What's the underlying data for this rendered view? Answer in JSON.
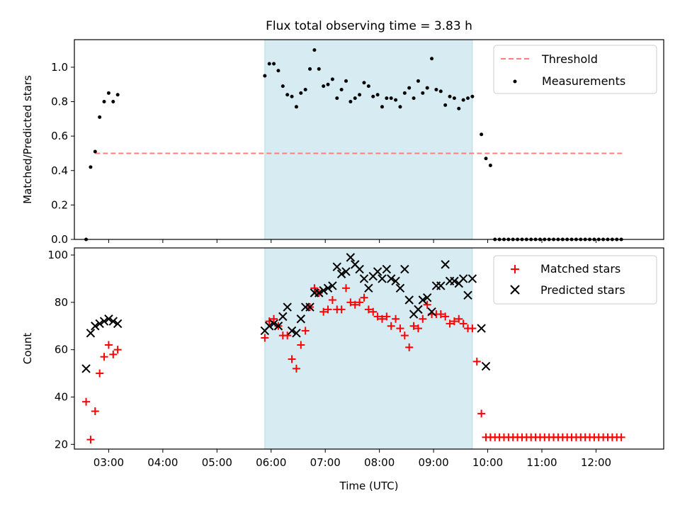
{
  "chart_data": [
    {
      "type": "scatter",
      "title": "Flux total observing time = 3.83 h",
      "xlabel": "",
      "ylabel": "Matched/Predicted stars",
      "xlim": [
        "02:22",
        "13:15"
      ],
      "ylim": [
        0,
        1.16
      ],
      "yticks": [
        "0.0",
        "0.2",
        "0.4",
        "0.6",
        "0.8",
        "1.0"
      ],
      "grid": false,
      "legend": "top-right",
      "shaded_interval": [
        "05:53",
        "09:43"
      ],
      "threshold": {
        "name": "Threshold",
        "value": 0.5,
        "x_start": "02:45",
        "x_end": "12:30",
        "color": "#ff7f7f"
      },
      "series": [
        {
          "name": "Measurements",
          "color": "#000000",
          "x": [
            "02:35",
            "02:40",
            "02:45",
            "02:50",
            "02:55",
            "03:00",
            "03:05",
            "03:10",
            "05:53",
            "05:58",
            "06:03",
            "06:08",
            "06:13",
            "06:18",
            "06:23",
            "06:28",
            "06:33",
            "06:38",
            "06:43",
            "06:48",
            "06:53",
            "06:58",
            "07:03",
            "07:08",
            "07:13",
            "07:18",
            "07:23",
            "07:28",
            "07:33",
            "07:38",
            "07:43",
            "07:48",
            "07:53",
            "07:58",
            "08:03",
            "08:08",
            "08:13",
            "08:18",
            "08:23",
            "08:28",
            "08:33",
            "08:38",
            "08:43",
            "08:48",
            "08:53",
            "08:58",
            "09:03",
            "09:08",
            "09:13",
            "09:18",
            "09:23",
            "09:28",
            "09:33",
            "09:38",
            "09:43",
            "09:53",
            "09:58",
            "10:03",
            "10:08",
            "10:13",
            "10:18",
            "10:23",
            "10:28",
            "10:33",
            "10:38",
            "10:43",
            "10:48",
            "10:53",
            "10:58",
            "11:03",
            "11:08",
            "11:13",
            "11:18",
            "11:23",
            "11:28",
            "11:33",
            "11:38",
            "11:43",
            "11:48",
            "11:53",
            "11:58",
            "12:03",
            "12:08",
            "12:13",
            "12:18",
            "12:23",
            "12:28"
          ],
          "values": [
            0.0,
            0.42,
            0.51,
            0.71,
            0.8,
            0.85,
            0.8,
            0.84,
            0.95,
            1.02,
            1.02,
            0.98,
            0.89,
            0.84,
            0.83,
            0.77,
            0.85,
            0.87,
            0.99,
            1.1,
            0.99,
            0.89,
            0.9,
            0.93,
            0.82,
            0.87,
            0.92,
            0.8,
            0.82,
            0.84,
            0.91,
            0.89,
            0.83,
            0.84,
            0.77,
            0.82,
            0.82,
            0.81,
            0.77,
            0.85,
            0.88,
            0.82,
            0.92,
            0.85,
            0.88,
            1.05,
            0.87,
            0.86,
            0.78,
            0.83,
            0.82,
            0.76,
            0.81,
            0.82,
            0.83,
            0.61,
            0.47,
            0.43,
            0.0,
            0.0,
            0.0,
            0.0,
            0.0,
            0.0,
            0.0,
            0.0,
            0.0,
            0.0,
            0.0,
            0.0,
            0.0,
            0.0,
            0.0,
            0.0,
            0.0,
            0.0,
            0.0,
            0.0,
            0.0,
            0.0,
            0.0,
            0.0,
            0.0,
            0.0,
            0.0,
            0.0,
            0.0
          ]
        }
      ]
    },
    {
      "type": "scatter",
      "title": "",
      "xlabel": "Time (UTC)",
      "ylabel": "Count",
      "xlim": [
        "02:22",
        "13:15"
      ],
      "ylim": [
        18,
        103
      ],
      "yticks": [
        "20",
        "40",
        "60",
        "80",
        "100"
      ],
      "xticks": [
        "03:00",
        "04:00",
        "05:00",
        "06:00",
        "07:00",
        "08:00",
        "09:00",
        "10:00",
        "11:00",
        "12:00"
      ],
      "grid": false,
      "legend": "top-right",
      "shaded_interval": [
        "05:53",
        "09:43"
      ],
      "series": [
        {
          "name": "Matched stars",
          "marker": "plus",
          "color": "#ff0000",
          "x": [
            "02:35",
            "02:40",
            "02:45",
            "02:50",
            "02:55",
            "03:00",
            "03:05",
            "03:10",
            "05:53",
            "05:58",
            "06:03",
            "06:08",
            "06:13",
            "06:18",
            "06:23",
            "06:28",
            "06:33",
            "06:38",
            "06:43",
            "06:48",
            "06:53",
            "06:58",
            "07:03",
            "07:08",
            "07:13",
            "07:18",
            "07:23",
            "07:28",
            "07:33",
            "07:38",
            "07:43",
            "07:48",
            "07:53",
            "07:58",
            "08:03",
            "08:08",
            "08:13",
            "08:18",
            "08:23",
            "08:28",
            "08:33",
            "08:38",
            "08:43",
            "08:48",
            "08:53",
            "08:58",
            "09:03",
            "09:08",
            "09:13",
            "09:18",
            "09:23",
            "09:28",
            "09:33",
            "09:38",
            "09:43",
            "09:48",
            "09:53",
            "09:58",
            "10:03",
            "10:08",
            "10:13",
            "10:18",
            "10:23",
            "10:28",
            "10:33",
            "10:38",
            "10:43",
            "10:48",
            "10:53",
            "10:58",
            "11:03",
            "11:08",
            "11:13",
            "11:18",
            "11:23",
            "11:28",
            "11:33",
            "11:38",
            "11:43",
            "11:48",
            "11:53",
            "11:58",
            "12:03",
            "12:08",
            "12:13",
            "12:18",
            "12:23",
            "12:28"
          ],
          "values": [
            38,
            22,
            34,
            50,
            57,
            62,
            58,
            60,
            65,
            72,
            73,
            70,
            66,
            66,
            56,
            52,
            62,
            68,
            78,
            86,
            84,
            76,
            77,
            81,
            77,
            77,
            86,
            80,
            79,
            80,
            82,
            77,
            76,
            74,
            73,
            74,
            70,
            73,
            69,
            66,
            61,
            70,
            69,
            73,
            79,
            75,
            75,
            75,
            74,
            71,
            72,
            73,
            71,
            69,
            69,
            55,
            33,
            23,
            23,
            23,
            23,
            23,
            23,
            23,
            23,
            23,
            23,
            23,
            23,
            23,
            23,
            23,
            23,
            23,
            23,
            23,
            23,
            23,
            23,
            23,
            23,
            23,
            23,
            23,
            23,
            23,
            23,
            23
          ]
        },
        {
          "name": "Predicted stars",
          "marker": "x",
          "color": "#000000",
          "x": [
            "02:35",
            "02:40",
            "02:45",
            "02:50",
            "02:55",
            "03:00",
            "03:05",
            "03:10",
            "05:53",
            "05:58",
            "06:03",
            "06:08",
            "06:13",
            "06:18",
            "06:23",
            "06:28",
            "06:33",
            "06:38",
            "06:43",
            "06:48",
            "06:53",
            "06:58",
            "07:03",
            "07:08",
            "07:13",
            "07:18",
            "07:23",
            "07:28",
            "07:33",
            "07:38",
            "07:43",
            "07:48",
            "07:53",
            "07:58",
            "08:03",
            "08:08",
            "08:13",
            "08:18",
            "08:23",
            "08:28",
            "08:33",
            "08:38",
            "08:43",
            "08:48",
            "08:53",
            "08:58",
            "09:03",
            "09:08",
            "09:13",
            "09:18",
            "09:23",
            "09:28",
            "09:33",
            "09:38",
            "09:43",
            "09:53",
            "09:58"
          ],
          "values": [
            52,
            67,
            70,
            71,
            72,
            73,
            72,
            71,
            68,
            70,
            71,
            70,
            74,
            78,
            68,
            67,
            73,
            78,
            78,
            84,
            84,
            85,
            86,
            87,
            95,
            92,
            93,
            99,
            96,
            94,
            90,
            86,
            91,
            93,
            90,
            94,
            90,
            89,
            86,
            94,
            81,
            75,
            77,
            81,
            82,
            76,
            87,
            87,
            96,
            89,
            89,
            88,
            90,
            83,
            90,
            69,
            53
          ]
        }
      ]
    }
  ]
}
